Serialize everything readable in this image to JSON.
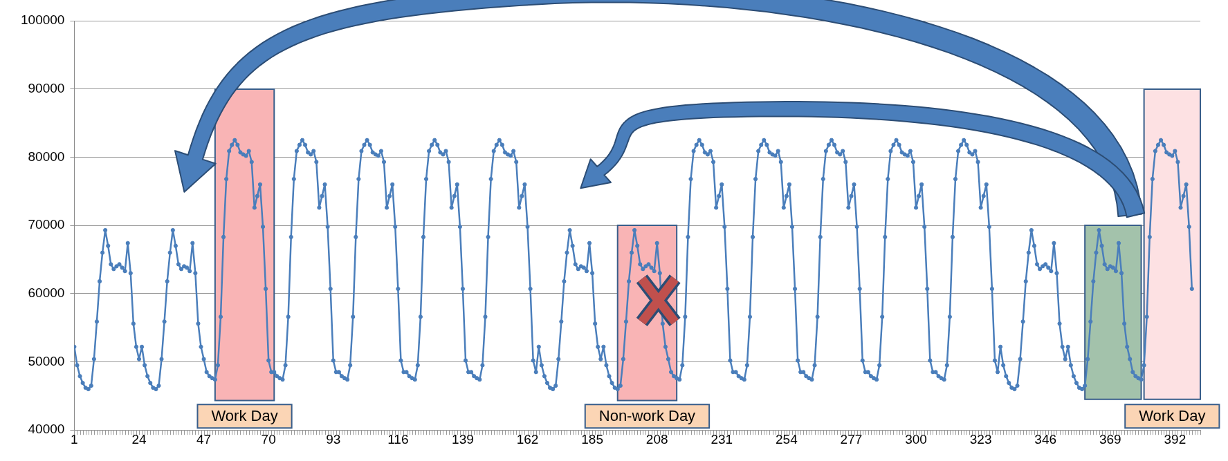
{
  "chart_data": {
    "type": "line",
    "color": "#4a7ebb",
    "marker": "circle",
    "grid": "y",
    "xlim": [
      1,
      401
    ],
    "xticks": [
      1,
      24,
      47,
      70,
      93,
      116,
      139,
      162,
      185,
      208,
      231,
      254,
      277,
      300,
      323,
      346,
      369,
      392
    ],
    "ylim": [
      40000,
      100000
    ],
    "yticks": [
      40000,
      50000,
      60000,
      70000,
      80000,
      90000,
      100000
    ],
    "x": [
      1,
      2,
      3,
      4,
      5,
      6,
      7,
      8,
      9,
      10,
      11,
      12,
      13,
      14,
      15,
      16,
      17,
      18,
      19,
      20,
      21,
      22,
      23,
      24,
      25,
      26,
      27,
      28,
      29,
      30,
      31,
      32,
      33,
      34,
      35,
      36,
      37,
      38,
      39,
      40,
      41,
      42,
      43,
      44,
      45,
      46,
      47,
      48,
      49,
      50,
      51,
      52,
      53,
      54,
      55,
      56,
      57,
      58,
      59,
      60,
      61,
      62,
      63,
      64,
      65,
      66,
      67,
      68,
      69,
      70,
      71,
      72,
      73,
      74,
      75,
      76,
      77,
      78,
      79,
      80,
      81,
      82,
      83,
      84,
      85,
      86,
      87,
      88,
      89,
      90,
      91,
      92,
      93,
      94,
      95,
      96,
      97,
      98,
      99,
      100,
      101,
      102,
      103,
      104,
      105,
      106,
      107,
      108,
      109,
      110,
      111,
      112,
      113,
      114,
      115,
      116,
      117,
      118,
      119,
      120,
      121,
      122,
      123,
      124,
      125,
      126,
      127,
      128,
      129,
      130,
      131,
      132,
      133,
      134,
      135,
      136,
      137,
      138,
      139,
      140,
      141,
      142,
      143,
      144,
      145,
      146,
      147,
      148,
      149,
      150,
      151,
      152,
      153,
      154,
      155,
      156,
      157,
      158,
      159,
      160,
      161,
      162,
      163,
      164,
      165,
      166,
      167,
      168,
      169,
      170,
      171,
      172,
      173,
      174,
      175,
      176,
      177,
      178,
      179,
      180,
      181,
      182,
      183,
      184,
      185,
      186,
      187,
      188,
      189,
      190,
      191,
      192,
      193,
      194,
      195,
      196,
      197,
      198,
      199,
      200,
      201,
      202,
      203,
      204,
      205,
      206,
      207,
      208,
      209,
      210,
      211,
      212,
      213,
      214,
      215,
      216,
      217,
      218,
      219,
      220,
      221,
      222,
      223,
      224,
      225,
      226,
      227,
      228,
      229,
      230,
      231,
      232,
      233,
      234,
      235,
      236,
      237,
      238,
      239,
      240,
      241,
      242,
      243,
      244,
      245,
      246,
      247,
      248,
      249,
      250,
      251,
      252,
      253,
      254,
      255,
      256,
      257,
      258,
      259,
      260,
      261,
      262,
      263,
      264,
      265,
      266,
      267,
      268,
      269,
      270,
      271,
      272,
      273,
      274,
      275,
      276,
      277,
      278,
      279,
      280,
      281,
      282,
      283,
      284,
      285,
      286,
      287,
      288,
      289,
      290,
      291,
      292,
      293,
      294,
      295,
      296,
      297,
      298,
      299,
      300,
      301,
      302,
      303,
      304,
      305,
      306,
      307,
      308,
      309,
      310,
      311,
      312,
      313,
      314,
      315,
      316,
      317,
      318,
      319,
      320,
      321,
      322,
      323,
      324,
      325,
      326,
      327,
      328,
      329,
      330,
      331,
      332,
      333,
      334,
      335,
      336,
      337,
      338,
      339,
      340,
      341,
      342,
      343,
      344,
      345,
      346,
      347,
      348,
      349,
      350,
      351,
      352,
      353,
      354,
      355,
      356,
      357,
      358,
      359,
      360,
      361,
      362,
      363,
      364,
      365,
      366,
      367,
      368,
      369,
      370,
      371,
      372,
      373,
      374,
      375,
      376,
      377,
      378,
      379,
      380,
      381,
      382,
      383,
      384,
      385,
      386,
      387,
      388,
      389,
      390,
      391,
      392,
      393,
      394,
      395,
      396,
      397,
      398
    ],
    "values": [
      52200,
      49500,
      47900,
      46900,
      46200,
      46000,
      46500,
      50400,
      55900,
      61800,
      66000,
      69300,
      67000,
      64300,
      63600,
      64000,
      64300,
      63800,
      63300,
      67400,
      63000,
      55600,
      52200,
      50400,
      52200,
      49500,
      47900,
      46900,
      46200,
      46000,
      46500,
      50400,
      55900,
      61800,
      66000,
      69300,
      67000,
      64300,
      63600,
      64000,
      63800,
      63300,
      67400,
      63000,
      55600,
      52200,
      50400,
      48500,
      47900,
      47600,
      47400,
      49500,
      56600,
      68300,
      76800,
      80900,
      81800,
      82500,
      81800,
      80700,
      80400,
      80200,
      80900,
      79300,
      72600,
      74300,
      76000,
      69800,
      60700,
      50200,
      48500,
      48500,
      47900,
      47600,
      47400,
      49500,
      56600,
      68300,
      76800,
      80900,
      81800,
      82500,
      81800,
      80700,
      80400,
      80900,
      79300,
      72600,
      74300,
      76000,
      69800,
      60700,
      50200,
      48500,
      48500,
      47900,
      47600,
      47400,
      49500,
      56600,
      68300,
      76800,
      80900,
      81800,
      82500,
      81800,
      80700,
      80400,
      80200,
      80900,
      79300,
      72600,
      74300,
      76000,
      69800,
      60700,
      50200,
      48500,
      48500,
      47900,
      47600,
      47400,
      49500,
      56600,
      68300,
      76800,
      80900,
      81800,
      82500,
      81800,
      80700,
      80400,
      80900,
      79300,
      72600,
      74300,
      76000,
      69800,
      60700,
      50200,
      48500,
      48500,
      47900,
      47600,
      47400,
      49500,
      56600,
      68300,
      76800,
      80900,
      81800,
      82500,
      81800,
      80700,
      80400,
      80200,
      80900,
      79300,
      72600,
      74300,
      76000,
      69800,
      60700,
      50200,
      48500,
      52200,
      49500,
      47900,
      46900,
      46200,
      46000,
      46500,
      50400,
      55900,
      61800,
      66000,
      69300,
      67000,
      64300,
      63600,
      64000,
      63800,
      63300,
      67400,
      63000,
      55600,
      52200,
      50400,
      52200,
      49500,
      47900,
      46900,
      46200,
      46000,
      46500,
      50400,
      55900,
      61800,
      66000,
      69300,
      67000,
      64300,
      63600,
      64000,
      64300,
      63800,
      63300,
      67400,
      63000,
      55600,
      52200,
      50400,
      48500,
      47900,
      47600,
      47400,
      49500,
      56600,
      68300,
      76800,
      80900,
      81800,
      82500,
      81800,
      80700,
      80400,
      80900,
      79300,
      72600,
      74300,
      76000,
      69800,
      60700,
      50200,
      48500,
      48500,
      47900,
      47600,
      47400,
      49500,
      56600,
      68300,
      76800,
      80900,
      81800,
      82500,
      81800,
      80700,
      80400,
      80200,
      80900,
      79300,
      72600,
      74300,
      76000,
      69800,
      60700,
      50200,
      48500,
      48500,
      47900,
      47600,
      47400,
      49500,
      56600,
      68300,
      76800,
      80900,
      81800,
      82500,
      81800,
      80700,
      80400,
      80900,
      79300,
      72600,
      74300,
      76000,
      69800,
      60700,
      50200,
      48500,
      48500,
      47900,
      47600,
      47400,
      49500,
      56600,
      68300,
      76800,
      80900,
      81800,
      82500,
      81800,
      80700,
      80400,
      80200,
      80900,
      79300,
      72600,
      74300,
      76000,
      69800,
      60700,
      50200,
      48500,
      48500,
      47900,
      47600,
      47400,
      49500,
      56600,
      68300,
      76800,
      80900,
      81800,
      82500,
      81800,
      80700,
      80400,
      80900,
      79300,
      72600,
      74300,
      76000,
      69800,
      60700,
      50200,
      48500,
      52200,
      49500,
      47900,
      46900,
      46200,
      46000,
      46500,
      50400,
      55900,
      61800,
      66000,
      69300,
      67000,
      64300,
      63600,
      64000,
      64300,
      63800,
      63300,
      67400,
      63000,
      55600,
      52200,
      50400,
      52200,
      49500,
      47900,
      46900,
      46200,
      46000,
      46500,
      50400,
      55900,
      61800,
      66000,
      69300,
      67000,
      64300,
      63600,
      64000,
      63800,
      63300,
      67400,
      63000,
      55600,
      52200,
      50400,
      48500,
      47900,
      47600,
      47400,
      49500,
      56600,
      68300,
      76800,
      80900,
      81800,
      82500,
      81800,
      80700,
      80400,
      80200,
      80900,
      79300,
      72600,
      74300,
      76000,
      69800,
      60700
    ],
    "bands": [
      {
        "axis": "x",
        "from": 51,
        "to": 72,
        "label": "Work Day",
        "color": "#f9b4b5"
      },
      {
        "axis": "x",
        "from": 194,
        "to": 215,
        "label": "Non-work Day",
        "color": "#f9b4b5"
      },
      {
        "axis": "x",
        "from": 360,
        "to": 380,
        "color": "#a3c2ab"
      },
      {
        "axis": "x",
        "from": 381,
        "to": 401,
        "label": "Work Day",
        "color": "#fde1e3"
      }
    ]
  }
}
